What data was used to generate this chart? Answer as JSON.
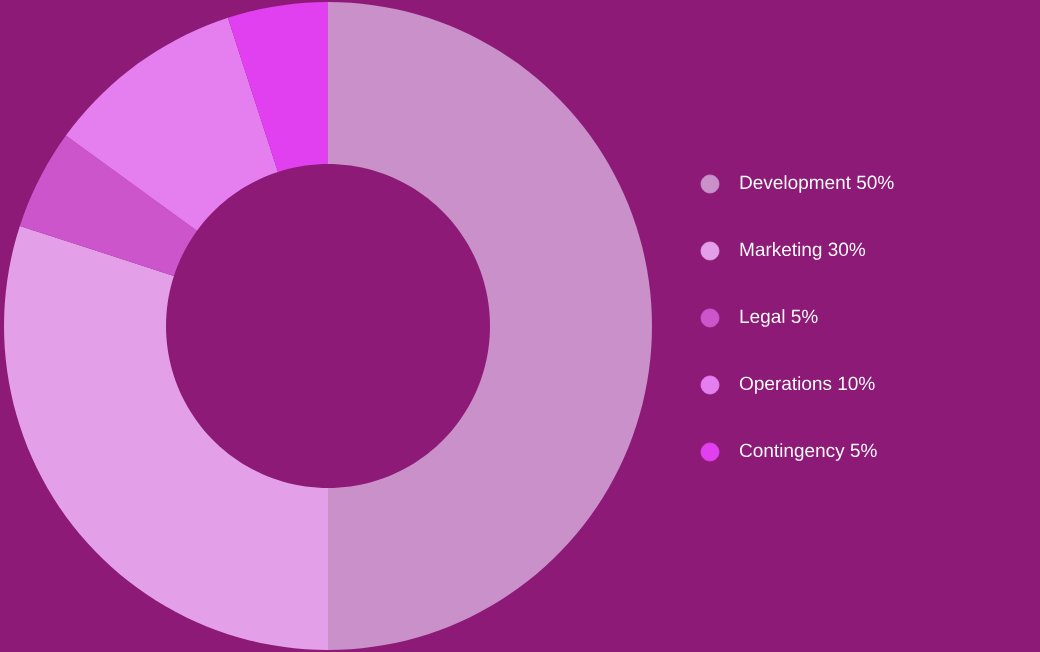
{
  "chart_data": {
    "type": "donut",
    "categories": [
      "Development 50%",
      "Marketing 30%",
      "Legal 5%",
      "Operations 10%",
      "Contingency 5%"
    ],
    "values": [
      50,
      30,
      5,
      10,
      5
    ],
    "colors": [
      "#c990c9",
      "#e3a0e8",
      "#cc55cc",
      "#e57ff0",
      "#e040f0"
    ],
    "legend": "right"
  }
}
